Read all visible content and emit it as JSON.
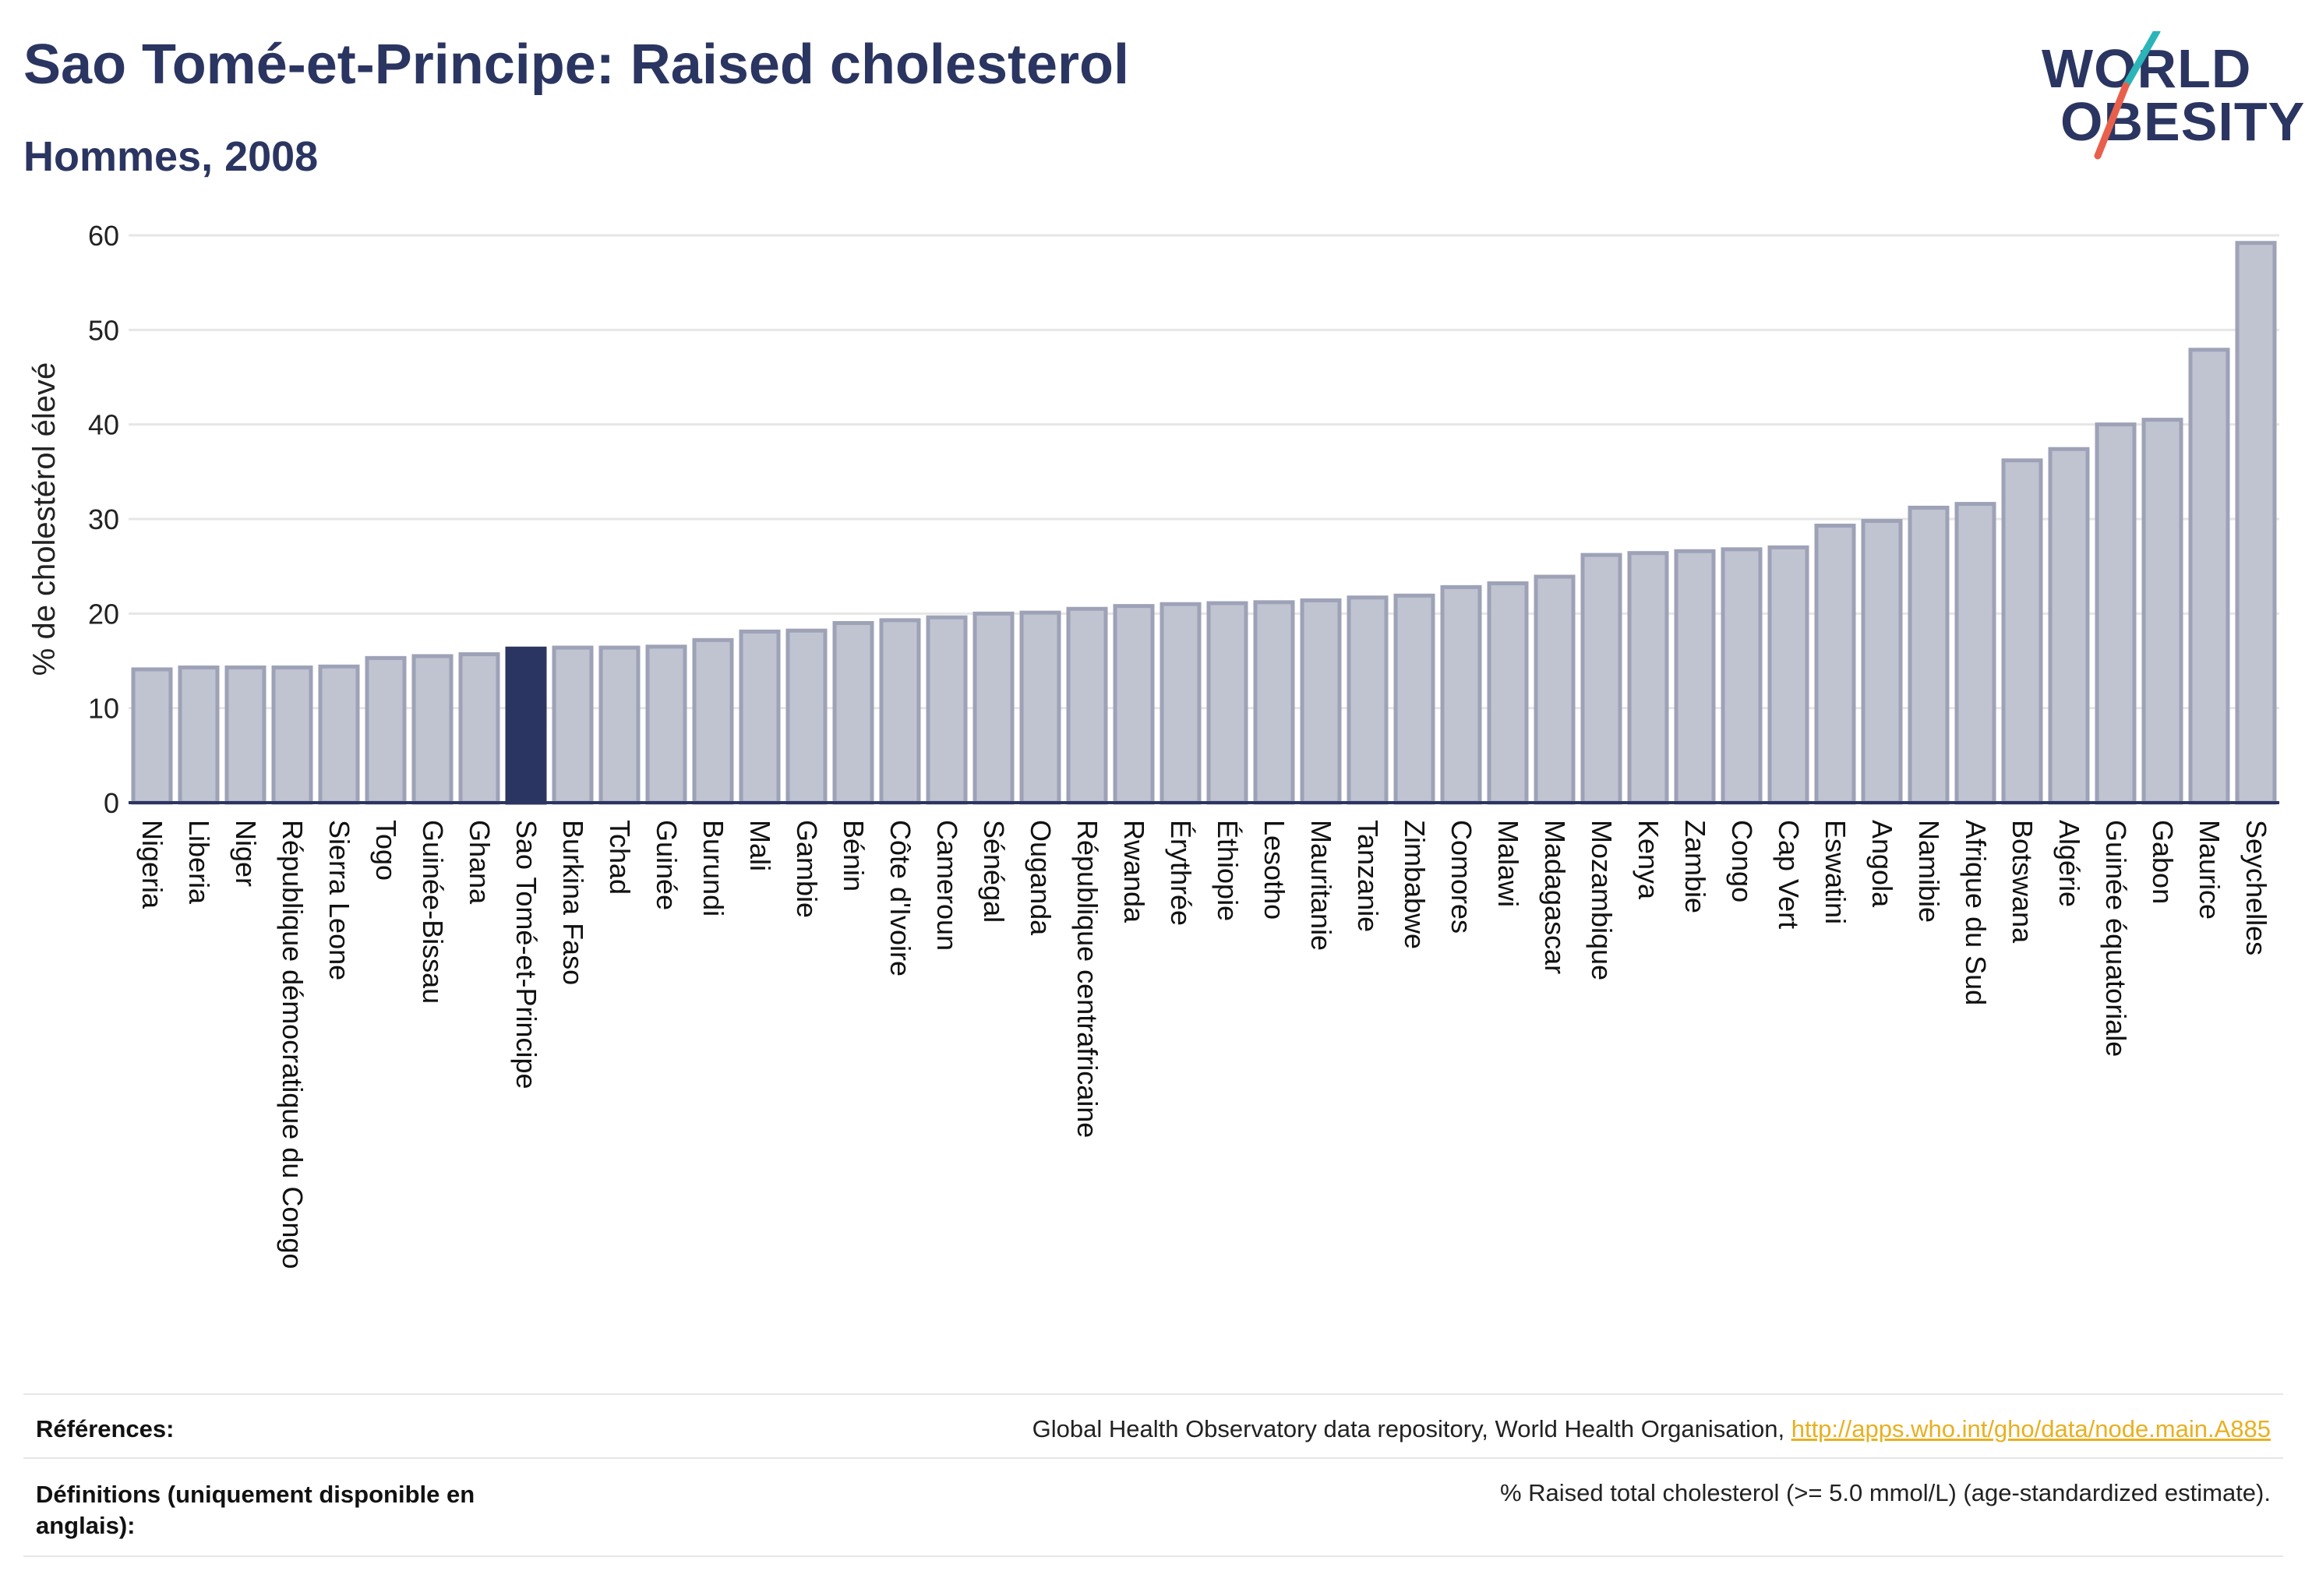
{
  "header": {
    "title": "Sao Tomé-et-Principe: Raised cholesterol",
    "subtitle": "Hommes, 2008"
  },
  "logo": {
    "line1": "WORLD",
    "line2": "OBESITY"
  },
  "colors": {
    "highlight": "#2b3561",
    "bar_fill": "#c0c3d0",
    "bar_stroke": "#9ea2b7",
    "grid": "#e6e6e6",
    "axis": "#2b3561",
    "logo_slash_teal": "#2bb5b8",
    "logo_slash_coral": "#e8604c"
  },
  "chart_data": {
    "type": "bar",
    "ylabel": "% de cholestérol élevé",
    "ylim": [
      0,
      60
    ],
    "yticks": [
      0,
      10,
      20,
      30,
      40,
      50,
      60
    ],
    "grid": true,
    "highlight_category": "Sao Tomé-et-Principe",
    "categories": [
      "Nigeria",
      "Liberia",
      "Niger",
      "République démocratique du Congo",
      "Sierra Leone",
      "Togo",
      "Guinée-Bissau",
      "Ghana",
      "Sao Tomé-et-Principe",
      "Burkina Faso",
      "Tchad",
      "Guinée",
      "Burundi",
      "Mali",
      "Gambie",
      "Bénin",
      "Côte d'Ivoire",
      "Cameroun",
      "Sénégal",
      "Ouganda",
      "République centrafricaine",
      "Rwanda",
      "Érythrée",
      "Éthiopie",
      "Lesotho",
      "Mauritanie",
      "Tanzanie",
      "Zimbabwe",
      "Comores",
      "Malawi",
      "Madagascar",
      "Mozambique",
      "Kenya",
      "Zambie",
      "Congo",
      "Cap Vert",
      "Eswatini",
      "Angola",
      "Namibie",
      "Afrique du Sud",
      "Botswana",
      "Algérie",
      "Guinée équatoriale",
      "Gabon",
      "Maurice",
      "Seychelles"
    ],
    "values": [
      14.1,
      14.3,
      14.3,
      14.3,
      14.4,
      15.3,
      15.5,
      15.7,
      16.3,
      16.4,
      16.4,
      16.5,
      17.2,
      18.1,
      18.2,
      19.0,
      19.3,
      19.6,
      20.0,
      20.1,
      20.5,
      20.8,
      21.0,
      21.1,
      21.2,
      21.4,
      21.7,
      21.9,
      22.8,
      23.2,
      23.9,
      26.2,
      26.4,
      26.6,
      26.8,
      27.0,
      29.3,
      29.8,
      31.2,
      31.6,
      36.2,
      37.4,
      40.0,
      40.5,
      47.9,
      59.2
    ]
  },
  "footer": {
    "references_label": "Références:",
    "references_text": "Global Health Observatory data repository, World Health Organisation, ",
    "references_link": "http://apps.who.int/gho/data/node.main.A885",
    "definitions_label": "Définitions (uniquement disponible en anglais):",
    "definitions_text": "% Raised total cholesterol (>= 5.0 mmol/L) (age-standardized estimate)."
  }
}
